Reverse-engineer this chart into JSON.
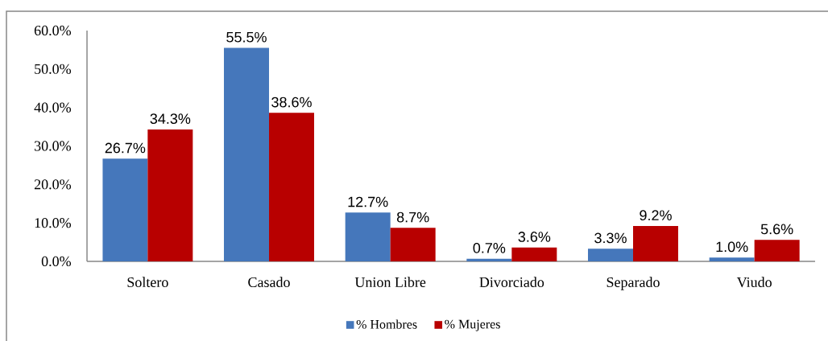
{
  "chart_data": {
    "type": "bar",
    "categories": [
      "Soltero",
      "Casado",
      "Union Libre",
      "Divorciado",
      "Separado",
      "Viudo"
    ],
    "series": [
      {
        "name": "% Hombres",
        "color": "#4577bb",
        "values": [
          26.7,
          55.5,
          12.7,
          0.7,
          3.3,
          1.0
        ],
        "value_labels": [
          "26.7%",
          "55.5%",
          "12.7%",
          "0.7%",
          "3.3%",
          "1.0%"
        ]
      },
      {
        "name": "% Mujeres",
        "color": "#b80000",
        "values": [
          34.3,
          38.6,
          8.7,
          3.6,
          9.2,
          5.6
        ],
        "value_labels": [
          "34.3%",
          "38.6%",
          "8.7%",
          "3.6%",
          "9.2%",
          "5.6%"
        ]
      }
    ],
    "ylim": [
      0,
      60
    ],
    "yticks": [
      {
        "value": 0,
        "label": "0.0%"
      },
      {
        "value": 10,
        "label": "10.0%"
      },
      {
        "value": 20,
        "label": "20.0%"
      },
      {
        "value": 30,
        "label": "30.0%"
      },
      {
        "value": 40,
        "label": "40.0%"
      },
      {
        "value": 50,
        "label": "50.0%"
      },
      {
        "value": 60,
        "label": "60.0%"
      }
    ],
    "grid": false,
    "legend": "bottom"
  }
}
